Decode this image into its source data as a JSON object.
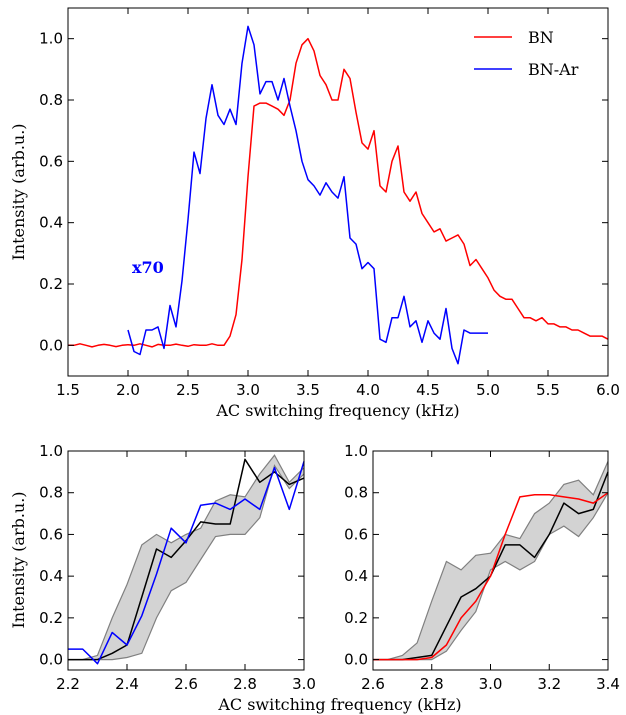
{
  "chart_data": [
    {
      "type": "line",
      "xlabel": "AC switching frequency (kHz)",
      "ylabel": "Intensity (arb.u.)",
      "xlim": [
        1.5,
        6.0
      ],
      "ylim": [
        -0.1,
        1.1
      ],
      "xticks": [
        "1.5",
        "2.0",
        "2.5",
        "3.0",
        "3.5",
        "4.0",
        "4.5",
        "5.0",
        "5.5",
        "6.0"
      ],
      "yticks": [
        "0.0",
        "0.2",
        "0.4",
        "0.6",
        "0.8",
        "1.0"
      ],
      "legend_position": "top-right",
      "annotation": "x70",
      "annotation_color": "#0000ff",
      "series": [
        {
          "name": "BN",
          "color": "#ff0000",
          "x": [
            1.5,
            1.55,
            1.6,
            1.65,
            1.7,
            1.75,
            1.8,
            1.85,
            1.9,
            1.95,
            2.0,
            2.05,
            2.1,
            2.15,
            2.2,
            2.25,
            2.3,
            2.35,
            2.4,
            2.45,
            2.5,
            2.55,
            2.6,
            2.65,
            2.7,
            2.75,
            2.8,
            2.85,
            2.9,
            2.95,
            3.0,
            3.05,
            3.1,
            3.15,
            3.2,
            3.25,
            3.3,
            3.35,
            3.4,
            3.45,
            3.5,
            3.55,
            3.6,
            3.65,
            3.7,
            3.75,
            3.8,
            3.85,
            3.9,
            3.95,
            4.0,
            4.05,
            4.1,
            4.15,
            4.2,
            4.25,
            4.3,
            4.35,
            4.4,
            4.45,
            4.5,
            4.55,
            4.6,
            4.65,
            4.7,
            4.75,
            4.8,
            4.85,
            4.9,
            4.95,
            5.0,
            5.05,
            5.1,
            5.15,
            5.2,
            5.25,
            5.3,
            5.35,
            5.4,
            5.45,
            5.5,
            5.55,
            5.6,
            5.65,
            5.7,
            5.75,
            5.8,
            5.85,
            5.9,
            5.95,
            6.0
          ],
          "y": [
            0.0,
            0.0,
            0.005,
            0.0,
            -0.005,
            0.0,
            0.003,
            0.0,
            -0.004,
            0.0,
            0.002,
            0.0,
            0.005,
            0.0,
            -0.005,
            0.003,
            0.0,
            0.0,
            0.004,
            0.0,
            -0.003,
            0.002,
            0.0,
            0.0,
            0.005,
            0.0,
            0.0,
            0.03,
            0.1,
            0.28,
            0.55,
            0.78,
            0.79,
            0.79,
            0.78,
            0.77,
            0.75,
            0.8,
            0.92,
            0.98,
            1.0,
            0.96,
            0.88,
            0.85,
            0.8,
            0.8,
            0.9,
            0.87,
            0.76,
            0.66,
            0.64,
            0.7,
            0.52,
            0.5,
            0.6,
            0.65,
            0.5,
            0.47,
            0.5,
            0.43,
            0.4,
            0.37,
            0.38,
            0.34,
            0.35,
            0.36,
            0.33,
            0.26,
            0.28,
            0.25,
            0.22,
            0.18,
            0.16,
            0.15,
            0.15,
            0.12,
            0.09,
            0.09,
            0.08,
            0.09,
            0.07,
            0.07,
            0.06,
            0.06,
            0.05,
            0.05,
            0.04,
            0.03,
            0.03,
            0.03,
            0.02
          ]
        },
        {
          "name": "BN-Ar",
          "color": "#0000ff",
          "x": [
            2.0,
            2.05,
            2.1,
            2.15,
            2.2,
            2.25,
            2.3,
            2.35,
            2.4,
            2.45,
            2.5,
            2.55,
            2.6,
            2.65,
            2.7,
            2.75,
            2.8,
            2.85,
            2.9,
            2.95,
            3.0,
            3.05,
            3.1,
            3.15,
            3.2,
            3.25,
            3.3,
            3.35,
            3.4,
            3.45,
            3.5,
            3.55,
            3.6,
            3.65,
            3.7,
            3.75,
            3.8,
            3.85,
            3.9,
            3.95,
            4.0,
            4.05,
            4.1,
            4.15,
            4.2,
            4.25,
            4.3,
            4.35,
            4.4,
            4.45,
            4.5,
            4.55,
            4.6,
            4.65,
            4.7,
            4.75,
            4.8,
            4.85,
            4.9,
            4.95,
            5.0
          ],
          "y": [
            0.05,
            -0.02,
            -0.03,
            0.05,
            0.05,
            0.06,
            -0.01,
            0.13,
            0.06,
            0.21,
            0.41,
            0.63,
            0.56,
            0.74,
            0.85,
            0.75,
            0.72,
            0.77,
            0.72,
            0.92,
            1.04,
            0.98,
            0.82,
            0.86,
            0.86,
            0.8,
            0.87,
            0.78,
            0.7,
            0.6,
            0.54,
            0.52,
            0.49,
            0.53,
            0.5,
            0.48,
            0.55,
            0.35,
            0.33,
            0.25,
            0.27,
            0.25,
            0.02,
            0.01,
            0.09,
            0.09,
            0.16,
            0.06,
            0.08,
            0.01,
            0.08,
            0.04,
            0.02,
            0.12,
            -0.01,
            -0.06,
            0.05,
            0.04,
            0.04,
            0.04,
            0.04
          ]
        }
      ]
    },
    {
      "type": "line",
      "xlabel": "",
      "ylabel": "Intensity (arb.u.)",
      "xlim": [
        2.2,
        3.0
      ],
      "ylim": [
        -0.05,
        1.0
      ],
      "xticks": [
        "2.2",
        "2.4",
        "2.6",
        "2.8",
        "3.0"
      ],
      "yticks": [
        "0.0",
        "0.2",
        "0.4",
        "0.6",
        "0.8",
        "1.0"
      ],
      "band": {
        "color": "#d3d3d3",
        "x": [
          2.2,
          2.25,
          2.3,
          2.35,
          2.4,
          2.45,
          2.5,
          2.55,
          2.6,
          2.65,
          2.7,
          2.75,
          2.8,
          2.85,
          2.9,
          2.95,
          3.0
        ],
        "lower": [
          0.0,
          0.0,
          0.0,
          0.0,
          0.01,
          0.03,
          0.2,
          0.33,
          0.37,
          0.48,
          0.59,
          0.6,
          0.6,
          0.68,
          0.93,
          0.82,
          0.89
        ],
        "upper": [
          0.0,
          0.0,
          0.02,
          0.2,
          0.36,
          0.55,
          0.6,
          0.56,
          0.6,
          0.63,
          0.76,
          0.79,
          0.78,
          0.89,
          0.98,
          0.85,
          0.92
        ]
      },
      "series": [
        {
          "color": "#000000",
          "x": [
            2.2,
            2.25,
            2.3,
            2.35,
            2.4,
            2.45,
            2.5,
            2.55,
            2.6,
            2.65,
            2.7,
            2.75,
            2.8,
            2.85,
            2.9,
            2.95,
            3.0
          ],
          "y": [
            0.0,
            0.0,
            0.0,
            0.03,
            0.07,
            0.3,
            0.53,
            0.49,
            0.57,
            0.66,
            0.65,
            0.65,
            0.96,
            0.85,
            0.9,
            0.84,
            0.87
          ]
        },
        {
          "color": "#0000ff",
          "x": [
            2.2,
            2.25,
            2.3,
            2.35,
            2.4,
            2.45,
            2.5,
            2.55,
            2.6,
            2.65,
            2.7,
            2.75,
            2.8,
            2.85,
            2.9,
            2.95,
            3.0
          ],
          "y": [
            0.05,
            0.05,
            -0.02,
            0.13,
            0.07,
            0.21,
            0.41,
            0.63,
            0.56,
            0.74,
            0.75,
            0.72,
            0.77,
            0.72,
            0.92,
            0.72,
            0.95
          ]
        }
      ]
    },
    {
      "type": "line",
      "xlabel": "AC switching frequency (kHz)",
      "ylabel": "",
      "xlim": [
        2.6,
        3.4
      ],
      "ylim": [
        -0.05,
        1.0
      ],
      "xticks": [
        "2.6",
        "2.8",
        "3.0",
        "3.2",
        "3.4"
      ],
      "yticks": [
        "0.0",
        "0.2",
        "0.4",
        "0.6",
        "0.8",
        "1.0"
      ],
      "band": {
        "color": "#d3d3d3",
        "x": [
          2.6,
          2.65,
          2.7,
          2.75,
          2.8,
          2.85,
          2.9,
          2.95,
          3.0,
          3.05,
          3.1,
          3.15,
          3.2,
          3.25,
          3.3,
          3.35,
          3.4
        ],
        "lower": [
          0.0,
          0.0,
          0.0,
          0.0,
          0.0,
          0.04,
          0.14,
          0.23,
          0.43,
          0.47,
          0.43,
          0.47,
          0.6,
          0.64,
          0.59,
          0.68,
          0.8
        ],
        "upper": [
          0.0,
          0.0,
          0.02,
          0.08,
          0.28,
          0.47,
          0.43,
          0.5,
          0.51,
          0.6,
          0.58,
          0.7,
          0.75,
          0.84,
          0.86,
          0.79,
          0.95
        ]
      },
      "series": [
        {
          "color": "#000000",
          "x": [
            2.6,
            2.65,
            2.7,
            2.75,
            2.8,
            2.85,
            2.9,
            2.95,
            3.0,
            3.05,
            3.1,
            3.15,
            3.2,
            3.25,
            3.3,
            3.35,
            3.4
          ],
          "y": [
            0.0,
            0.0,
            0.0,
            0.01,
            0.02,
            0.16,
            0.3,
            0.34,
            0.4,
            0.55,
            0.55,
            0.49,
            0.6,
            0.75,
            0.7,
            0.72,
            0.9
          ]
        },
        {
          "color": "#ff0000",
          "x": [
            2.6,
            2.65,
            2.7,
            2.75,
            2.8,
            2.85,
            2.9,
            2.95,
            3.0,
            3.05,
            3.1,
            3.15,
            3.2,
            3.25,
            3.3,
            3.35,
            3.4
          ],
          "y": [
            0.0,
            0.0,
            0.0,
            0.0,
            0.01,
            0.07,
            0.2,
            0.28,
            0.4,
            0.6,
            0.78,
            0.79,
            0.79,
            0.78,
            0.77,
            0.75,
            0.8
          ]
        }
      ]
    }
  ]
}
